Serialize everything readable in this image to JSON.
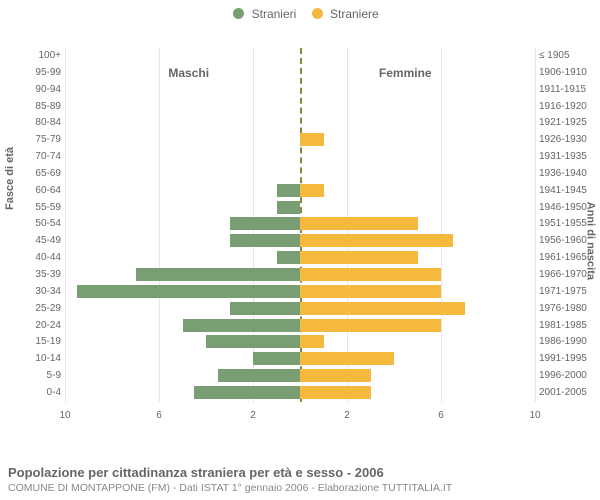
{
  "legend": {
    "male": {
      "label": "Stranieri",
      "color": "#7a9e74"
    },
    "female": {
      "label": "Straniere",
      "color": "#f5b93f"
    }
  },
  "sideTitles": {
    "left": "Maschi",
    "right": "Femmine"
  },
  "axisTitles": {
    "left": "Fasce di età",
    "right": "Anni di nascita"
  },
  "pyramid": {
    "type": "population-pyramid",
    "xmax": 10,
    "xticks": [
      10,
      6,
      2,
      2,
      6,
      10
    ],
    "bar_left_color": "#7a9e74",
    "bar_right_color": "#f5b93f",
    "grid_color": "#e6e6e6",
    "centerline_color": "#7a7a2a",
    "rows": [
      {
        "age": "100+",
        "birth": "≤ 1905",
        "m": 0,
        "f": 0
      },
      {
        "age": "95-99",
        "birth": "1906-1910",
        "m": 0,
        "f": 0
      },
      {
        "age": "90-94",
        "birth": "1911-1915",
        "m": 0,
        "f": 0
      },
      {
        "age": "85-89",
        "birth": "1916-1920",
        "m": 0,
        "f": 0
      },
      {
        "age": "80-84",
        "birth": "1921-1925",
        "m": 0,
        "f": 0
      },
      {
        "age": "75-79",
        "birth": "1926-1930",
        "m": 0,
        "f": 1
      },
      {
        "age": "70-74",
        "birth": "1931-1935",
        "m": 0,
        "f": 0
      },
      {
        "age": "65-69",
        "birth": "1936-1940",
        "m": 0,
        "f": 0
      },
      {
        "age": "60-64",
        "birth": "1941-1945",
        "m": 1,
        "f": 1
      },
      {
        "age": "55-59",
        "birth": "1946-1950",
        "m": 1,
        "f": 0
      },
      {
        "age": "50-54",
        "birth": "1951-1955",
        "m": 3,
        "f": 5
      },
      {
        "age": "45-49",
        "birth": "1956-1960",
        "m": 3,
        "f": 6.5
      },
      {
        "age": "40-44",
        "birth": "1961-1965",
        "m": 1,
        "f": 5
      },
      {
        "age": "35-39",
        "birth": "1966-1970",
        "m": 7,
        "f": 6
      },
      {
        "age": "30-34",
        "birth": "1971-1975",
        "m": 9.5,
        "f": 6
      },
      {
        "age": "25-29",
        "birth": "1976-1980",
        "m": 3,
        "f": 7
      },
      {
        "age": "20-24",
        "birth": "1981-1985",
        "m": 5,
        "f": 6
      },
      {
        "age": "15-19",
        "birth": "1986-1990",
        "m": 4,
        "f": 1
      },
      {
        "age": "10-14",
        "birth": "1991-1995",
        "m": 2,
        "f": 4
      },
      {
        "age": "5-9",
        "birth": "1996-2000",
        "m": 3.5,
        "f": 3
      },
      {
        "age": "0-4",
        "birth": "2001-2005",
        "m": 4.5,
        "f": 3
      }
    ]
  },
  "footer": {
    "title": "Popolazione per cittadinanza straniera per età e sesso - 2006",
    "subtitle": "COMUNE DI MONTAPPONE (FM) - Dati ISTAT 1° gennaio 2006 - Elaborazione TUTTITALIA.IT"
  }
}
